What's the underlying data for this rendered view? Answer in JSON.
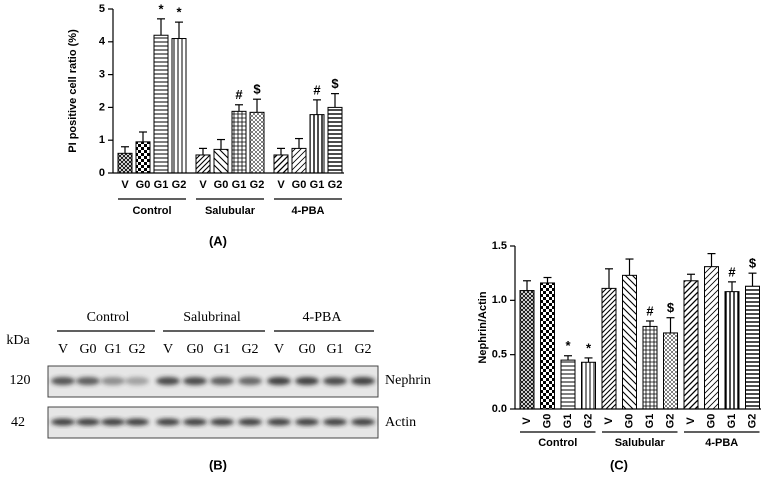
{
  "chart_data": [
    {
      "type": "bar",
      "y_label": "PI positive cell ratio (%)",
      "panel_label": "(A)",
      "ylim": [
        0,
        5
      ],
      "yticks": [
        0,
        1,
        2,
        3,
        4,
        5
      ],
      "groups": [
        {
          "name": "Control",
          "categories": [
            "V",
            "G0",
            "G1",
            "G2"
          ],
          "values": [
            0.6,
            0.95,
            4.2,
            4.1
          ],
          "errors": [
            0.2,
            0.3,
            0.5,
            0.5
          ],
          "annotations": [
            null,
            null,
            "*",
            "*"
          ]
        },
        {
          "name": "Salubular",
          "categories": [
            "V",
            "G0",
            "G1",
            "G2"
          ],
          "values": [
            0.55,
            0.72,
            1.88,
            1.85
          ],
          "errors": [
            0.2,
            0.3,
            0.2,
            0.4
          ],
          "annotations": [
            null,
            null,
            "#",
            "$"
          ]
        },
        {
          "name": "4-PBA",
          "categories": [
            "V",
            "G0",
            "G1",
            "G2"
          ],
          "values": [
            0.55,
            0.75,
            1.78,
            2.0
          ],
          "errors": [
            0.2,
            0.3,
            0.45,
            0.42
          ],
          "annotations": [
            null,
            null,
            "#",
            "$"
          ]
        }
      ]
    },
    {
      "type": "bar",
      "y_label": "Nephrin/Actin",
      "panel_label": "(C)",
      "ylim": [
        0,
        1.5
      ],
      "yticks": [
        {
          "value": 0,
          "label": "0.0"
        },
        0.5,
        {
          "value": 1,
          "label": "1.0"
        },
        1.5
      ],
      "groups": [
        {
          "name": "Control",
          "categories": [
            "V",
            "G0",
            "G1",
            "G2"
          ],
          "values": [
            1.09,
            1.16,
            0.45,
            0.43
          ],
          "errors": [
            0.09,
            0.05,
            0.04,
            0.04
          ],
          "annotations": [
            null,
            null,
            "*",
            "*"
          ]
        },
        {
          "name": "Salubular",
          "categories": [
            "V",
            "G0",
            "G1",
            "G2"
          ],
          "values": [
            1.11,
            1.23,
            0.76,
            0.7
          ],
          "errors": [
            0.18,
            0.15,
            0.05,
            0.14
          ],
          "annotations": [
            null,
            null,
            "#",
            "$"
          ]
        },
        {
          "name": "4-PBA",
          "categories": [
            "V",
            "G0",
            "G1",
            "G2"
          ],
          "values": [
            1.18,
            1.31,
            1.08,
            1.13
          ],
          "errors": [
            0.06,
            0.12,
            0.09,
            0.12
          ],
          "annotations": [
            null,
            null,
            "#",
            "$"
          ]
        }
      ]
    }
  ],
  "blot": {
    "panel_label": "(B)",
    "unit": "kDa",
    "groups": [
      "Control",
      "Salubrinal",
      "4-PBA"
    ],
    "lanes": [
      "V",
      "G0",
      "G1",
      "G2",
      "V",
      "G0",
      "G1",
      "G2",
      "V",
      "G0",
      "G1",
      "G2"
    ],
    "rows": [
      {
        "marker": "120",
        "label": "Nephrin"
      },
      {
        "marker": "42",
        "label": "Actin"
      }
    ]
  }
}
